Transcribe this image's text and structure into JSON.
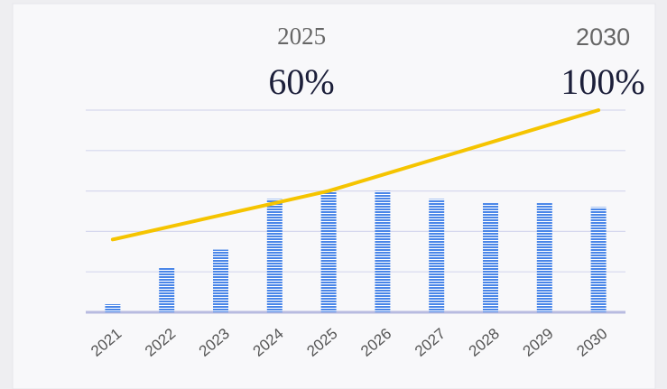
{
  "chart_data": {
    "type": "bar",
    "categories": [
      "2021",
      "2022",
      "2023",
      "2024",
      "2025",
      "2026",
      "2027",
      "2028",
      "2029",
      "2030"
    ],
    "series": [
      {
        "kind": "bar",
        "color": "#4a86e8",
        "values": [
          4,
          22,
          31,
          56,
          60,
          60,
          56,
          54,
          54,
          52
        ]
      },
      {
        "kind": "line",
        "color": "#f5c400",
        "values": [
          36,
          42,
          48,
          54,
          60,
          68,
          76,
          84,
          92,
          100
        ]
      }
    ],
    "annotations": [
      {
        "year": "2025",
        "text": "60%"
      },
      {
        "year": "2030",
        "text": "100%"
      }
    ],
    "ylim": [
      0,
      100
    ],
    "yticks": [
      0,
      20,
      40,
      60,
      80,
      100
    ],
    "grid": true
  }
}
